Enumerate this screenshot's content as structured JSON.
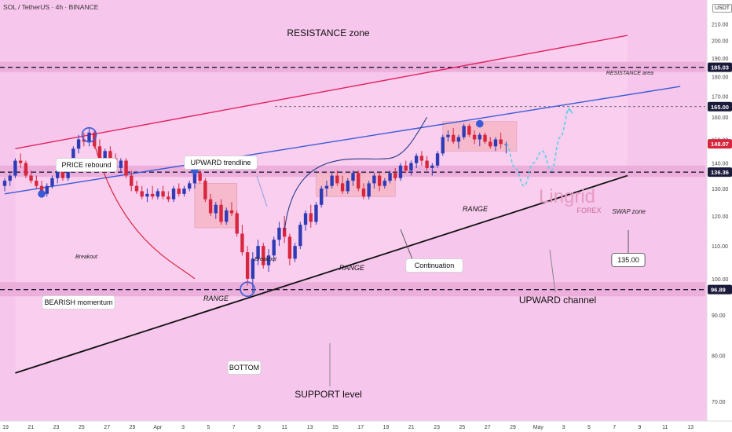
{
  "header": {
    "symbol": "SOL / TetherUS · 4h · BINANCE",
    "currency": "USDT"
  },
  "colors": {
    "background": "#f7c6ec",
    "band": "#e8a8d6",
    "up_candle": "#2f3bb5",
    "down_candle": "#d7263d",
    "resistance_line": "#e0245e",
    "trendline": "#3a5bd6",
    "support_line": "#111111",
    "projection": "#5ad0e6",
    "label_bg": "#ffffff"
  },
  "labels": {
    "resistance_zone": "RESISTANCE zone",
    "resistance_area": "RESISTANCE area",
    "price_rebound": "PRICE rebound",
    "upward_trendline": "UPWARD trendline",
    "breakout_left": "Breakout",
    "breakout_mid": "Breakout",
    "bearish_momentum": "BEARISH momentum",
    "range_1": "RANGE",
    "range_2": "RANGE",
    "range_3": "RANGE",
    "swap_zone": "SWAP zone",
    "continuation": "Continuation",
    "upward_channel": "UPWARD channel",
    "bottom": "BOTTOM",
    "support_level": "SUPPORT level",
    "target_135": "135.00",
    "watermark_main": "Lingrid",
    "watermark_sub": "FOREX"
  },
  "chart_data": {
    "type": "candlestick",
    "title": "SOL / TetherUS · 4h · BINANCE",
    "ylim": [
      67,
      215
    ],
    "y_scale": "log",
    "y_ticks": [
      70,
      80,
      90,
      100,
      110,
      120,
      130,
      140,
      150,
      160,
      170,
      180,
      190,
      200,
      210
    ],
    "price_labels": [
      {
        "value": 185.03,
        "label": "185.03",
        "color": "#1a1a3a"
      },
      {
        "value": 165.0,
        "label": "165.00",
        "color": "#1a1a3a"
      },
      {
        "value": 148.07,
        "label": "148.07",
        "color": "#d7263d"
      },
      {
        "value": 136.36,
        "label": "136.36",
        "color": "#1a1a3a"
      },
      {
        "value": 96.89,
        "label": "96.89",
        "color": "#1a1a3a"
      }
    ],
    "x_ticks": [
      "19",
      "21",
      "23",
      "25",
      "27",
      "29",
      "Apr",
      "3",
      "5",
      "7",
      "9",
      "11",
      "13",
      "15",
      "17",
      "19",
      "21",
      "23",
      "25",
      "27",
      "29",
      "May",
      "3",
      "5",
      "7",
      "9",
      "11",
      "13"
    ],
    "zones": [
      {
        "name": "RESISTANCE area",
        "low": 182.5,
        "high": 188.0,
        "level": 185.03
      },
      {
        "name": "SWAP zone",
        "low": 134.5,
        "high": 139.0,
        "level": 136.36
      },
      {
        "name": "SUPPORT level",
        "low": 95.0,
        "high": 99.0,
        "level": 96.89
      }
    ],
    "levels": [
      165.0,
      135.0
    ],
    "candles": [
      [
        131,
        134,
        129,
        133
      ],
      [
        133,
        136,
        131,
        135
      ],
      [
        135,
        142,
        134,
        141
      ],
      [
        141,
        144,
        138,
        140
      ],
      [
        140,
        141,
        134,
        135
      ],
      [
        135,
        137,
        132,
        133
      ],
      [
        133,
        135,
        130,
        131
      ],
      [
        131,
        133,
        127,
        128
      ],
      [
        128,
        132,
        127,
        131
      ],
      [
        131,
        135,
        130,
        134
      ],
      [
        134,
        138,
        132,
        137
      ],
      [
        137,
        139,
        133,
        134
      ],
      [
        134,
        141,
        133,
        140
      ],
      [
        140,
        147,
        139,
        146
      ],
      [
        146,
        152,
        144,
        150
      ],
      [
        150,
        153,
        147,
        149
      ],
      [
        149,
        155,
        147,
        153
      ],
      [
        153,
        154,
        146,
        147
      ],
      [
        147,
        150,
        141,
        142
      ],
      [
        142,
        146,
        140,
        145
      ],
      [
        145,
        147,
        141,
        142
      ],
      [
        142,
        144,
        137,
        138
      ],
      [
        138,
        142,
        136,
        141
      ],
      [
        141,
        142,
        134,
        135
      ],
      [
        135,
        137,
        129,
        131
      ],
      [
        131,
        133,
        128,
        129
      ],
      [
        129,
        131,
        126,
        127
      ],
      [
        127,
        130,
        125,
        128
      ],
      [
        128,
        131,
        126,
        127
      ],
      [
        127,
        130,
        126,
        129
      ],
      [
        129,
        131,
        126,
        127
      ],
      [
        127,
        129,
        125,
        126
      ],
      [
        126,
        131,
        125,
        130
      ],
      [
        130,
        132,
        127,
        128
      ],
      [
        128,
        131,
        127,
        130
      ],
      [
        130,
        133,
        129,
        132
      ],
      [
        132,
        137,
        130,
        136
      ],
      [
        136,
        138,
        132,
        133
      ],
      [
        133,
        134,
        125,
        126
      ],
      [
        126,
        128,
        120,
        121
      ],
      [
        121,
        125,
        119,
        124
      ],
      [
        124,
        126,
        117,
        118
      ],
      [
        118,
        123,
        117,
        122
      ],
      [
        122,
        125,
        120,
        121
      ],
      [
        121,
        122,
        113,
        114
      ],
      [
        114,
        117,
        107,
        108
      ],
      [
        108,
        110,
        98,
        100
      ],
      [
        100,
        108,
        96,
        106
      ],
      [
        106,
        112,
        104,
        110
      ],
      [
        110,
        111,
        103,
        104
      ],
      [
        104,
        109,
        102,
        107
      ],
      [
        107,
        113,
        105,
        112
      ],
      [
        112,
        118,
        110,
        116
      ],
      [
        116,
        120,
        111,
        113
      ],
      [
        113,
        114,
        104,
        106
      ],
      [
        106,
        111,
        105,
        110
      ],
      [
        110,
        118,
        109,
        117
      ],
      [
        117,
        122,
        115,
        121
      ],
      [
        121,
        124,
        116,
        118
      ],
      [
        118,
        125,
        117,
        124
      ],
      [
        124,
        131,
        123,
        130
      ],
      [
        130,
        133,
        127,
        131
      ],
      [
        131,
        136,
        130,
        135
      ],
      [
        135,
        137,
        131,
        132
      ],
      [
        132,
        135,
        128,
        129
      ],
      [
        129,
        134,
        128,
        133
      ],
      [
        133,
        137,
        131,
        136
      ],
      [
        136,
        137,
        129,
        130
      ],
      [
        130,
        132,
        126,
        127
      ],
      [
        127,
        133,
        126,
        132
      ],
      [
        132,
        136,
        130,
        135
      ],
      [
        135,
        136,
        129,
        131
      ],
      [
        131,
        134,
        130,
        133
      ],
      [
        133,
        137,
        132,
        136
      ],
      [
        136,
        138,
        133,
        134
      ],
      [
        134,
        140,
        133,
        139
      ],
      [
        139,
        141,
        136,
        137
      ],
      [
        137,
        141,
        135,
        140
      ],
      [
        140,
        144,
        138,
        143
      ],
      [
        143,
        145,
        139,
        141
      ],
      [
        141,
        143,
        137,
        138
      ],
      [
        138,
        140,
        135,
        139
      ],
      [
        139,
        145,
        138,
        144
      ],
      [
        144,
        152,
        143,
        151
      ],
      [
        151,
        154,
        149,
        152
      ],
      [
        152,
        155,
        148,
        149
      ],
      [
        149,
        152,
        146,
        151
      ],
      [
        151,
        157,
        150,
        156
      ],
      [
        156,
        157,
        151,
        152
      ],
      [
        152,
        154,
        148,
        150
      ],
      [
        150,
        153,
        147,
        152
      ],
      [
        152,
        153,
        148,
        149
      ],
      [
        149,
        151,
        146,
        147
      ],
      [
        147,
        151,
        145,
        150
      ],
      [
        150,
        153,
        146,
        148
      ],
      [
        148,
        149,
        144,
        148
      ]
    ],
    "trendlines": [
      {
        "name": "resistance",
        "from": {
          "i": 2,
          "price": 146
        },
        "to": {
          "i": 118,
          "price": 203
        }
      },
      {
        "name": "upward trendline",
        "from": {
          "i": 0,
          "price": 128
        },
        "to": {
          "i": 128,
          "price": 175
        }
      },
      {
        "name": "support",
        "from": {
          "i": 2,
          "price": 76
        },
        "to": {
          "i": 118,
          "price": 135
        }
      }
    ],
    "projection": [
      148,
      138,
      131,
      140,
      145,
      137,
      151,
      164
    ]
  }
}
